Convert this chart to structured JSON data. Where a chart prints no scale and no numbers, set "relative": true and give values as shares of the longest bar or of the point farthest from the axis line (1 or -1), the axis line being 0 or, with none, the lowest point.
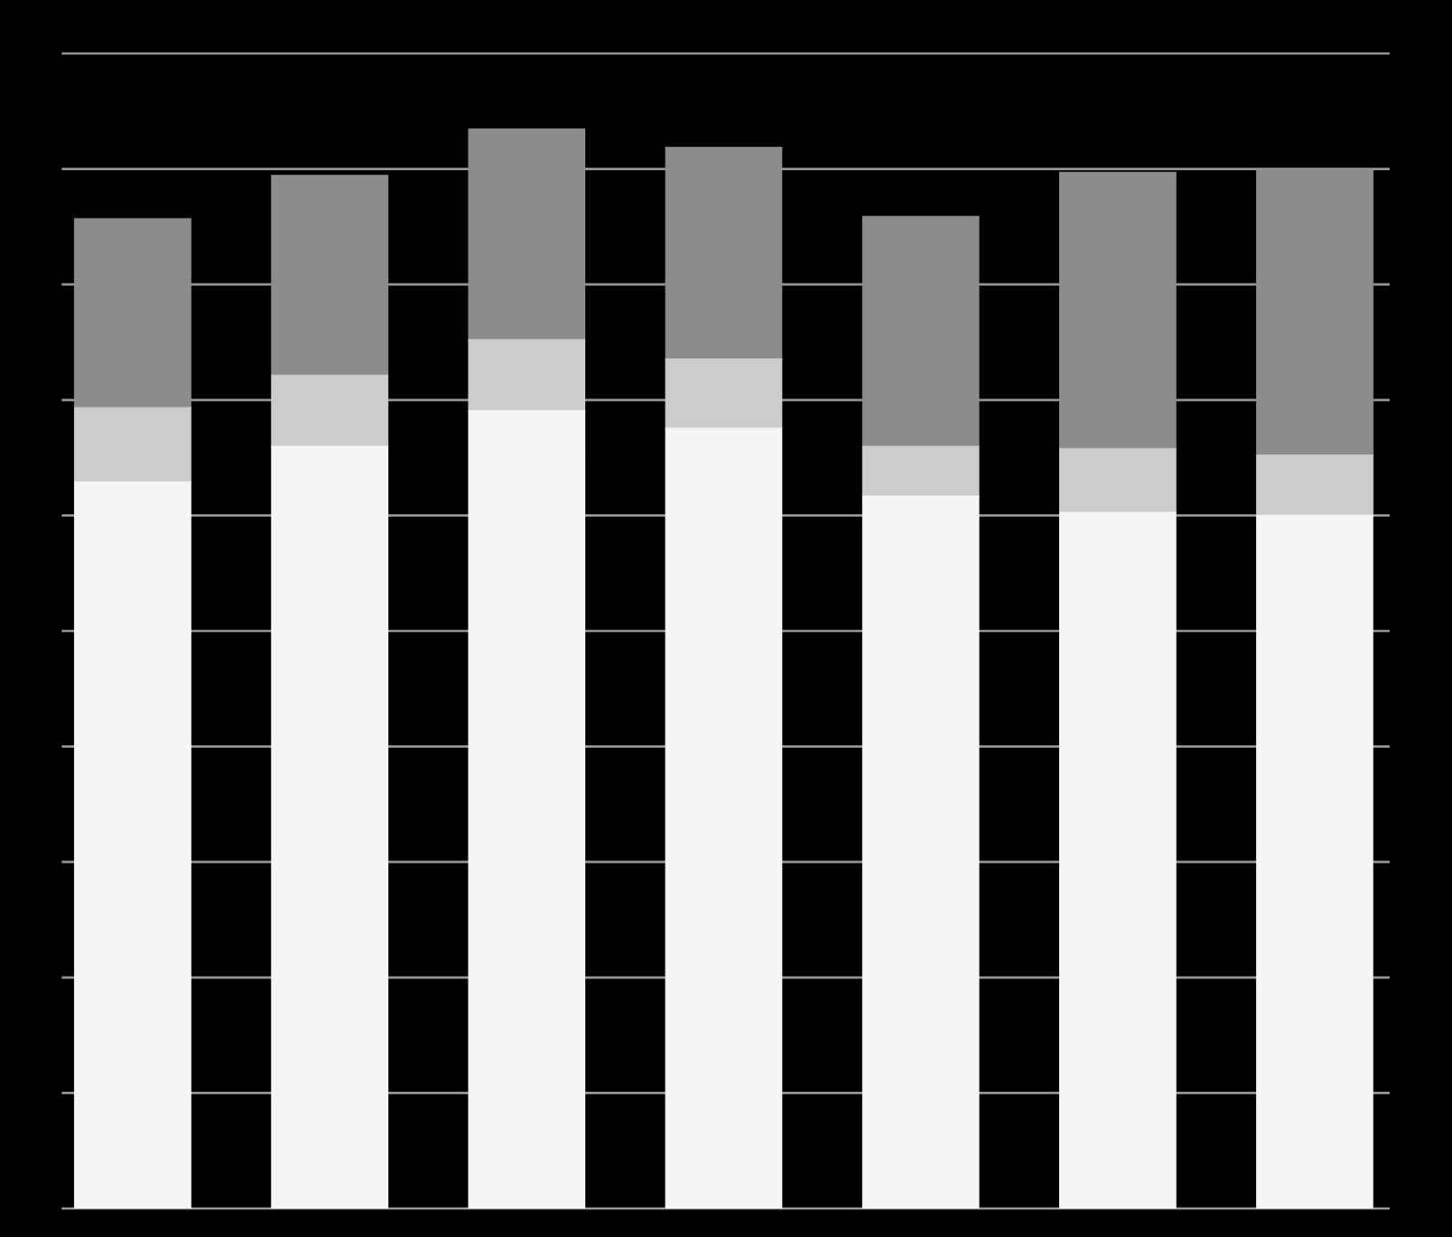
{
  "chart_data": {
    "type": "bar",
    "stacked": true,
    "relative": true,
    "grid": "y",
    "categories": [
      null,
      null,
      null,
      null,
      null,
      null,
      null
    ],
    "series": [
      {
        "color": "#f5f5f5",
        "values": [
          0.673,
          0.706,
          0.739,
          0.723,
          0.66,
          0.645,
          0.642
        ]
      },
      {
        "color": "#cccccc",
        "values": [
          0.069,
          0.066,
          0.066,
          0.064,
          0.046,
          0.059,
          0.056
        ]
      },
      {
        "color": "#8c8c8c",
        "values": [
          0.175,
          0.185,
          0.195,
          0.196,
          0.213,
          0.256,
          0.264
        ]
      }
    ]
  }
}
